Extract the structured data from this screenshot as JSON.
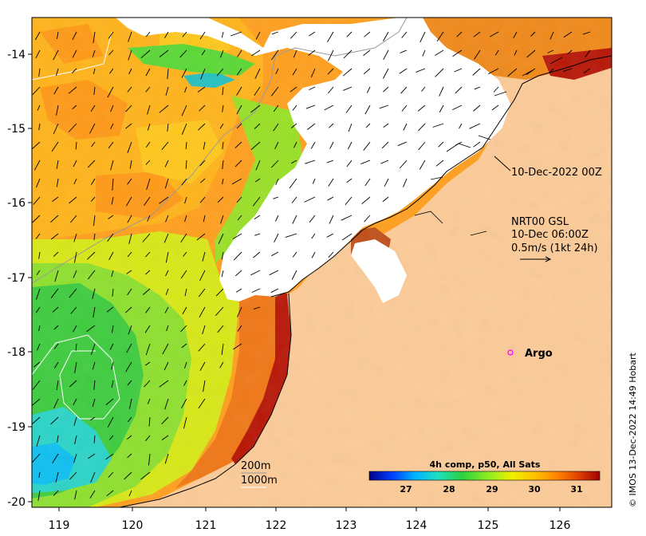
{
  "map": {
    "x_ticks": [
      "119",
      "120",
      "121",
      "122",
      "123",
      "124",
      "125",
      "126"
    ],
    "y_ticks": [
      "-14",
      "-15",
      "-16",
      "-17",
      "-18",
      "-19",
      "-20"
    ],
    "lon_range": [
      118.6,
      126.7
    ],
    "lat_range": [
      -13.35,
      -20.1
    ]
  },
  "annotations": {
    "time_label": "10-Dec-2022 00Z",
    "current_lines": [
      "NRT00 GSL",
      "10-Dec 06:00Z",
      "0.5m/s (1kt 24h)"
    ],
    "argo_label": "Argo",
    "depth_200": "200m",
    "depth_1000": "1000m",
    "credit": "© IMOS 13-Dec-2022 14:49 Hobart"
  },
  "colorbar": {
    "title": "4h comp, p50, All Sats",
    "ticks": [
      "27",
      "28",
      "29",
      "30",
      "31"
    ],
    "range": [
      26.1,
      31.6
    ],
    "colors": [
      "#00008b",
      "#0040ff",
      "#00b4ff",
      "#20e0c0",
      "#28d040",
      "#90ee20",
      "#f0f000",
      "#ffc000",
      "#ff8000",
      "#e04000",
      "#a00000"
    ]
  },
  "colors": {
    "land": "#fccb98",
    "cloud": "#ffffff",
    "argo_marker": "#ff00ff"
  }
}
